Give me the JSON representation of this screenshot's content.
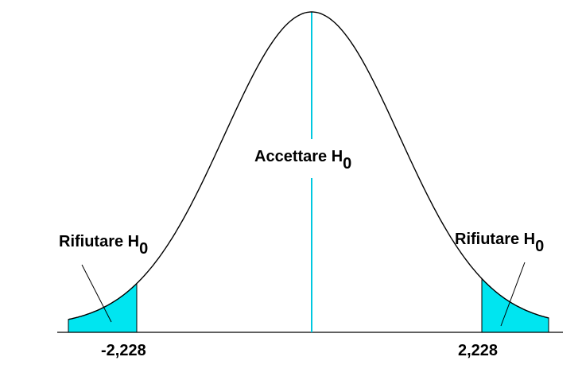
{
  "diagram": {
    "center_label": {
      "text": "Accettare H",
      "sub": "0"
    },
    "left_label": {
      "text": "Rifiutare H",
      "sub": "0"
    },
    "right_label": {
      "text": "Rifiutare H",
      "sub": "0"
    },
    "left_critical_value": "-2,228",
    "right_critical_value": "2,228",
    "colors": {
      "curve": "#000000",
      "region": "#00e5f0",
      "center_line": "#00c8e0",
      "axis": "#000000"
    }
  }
}
